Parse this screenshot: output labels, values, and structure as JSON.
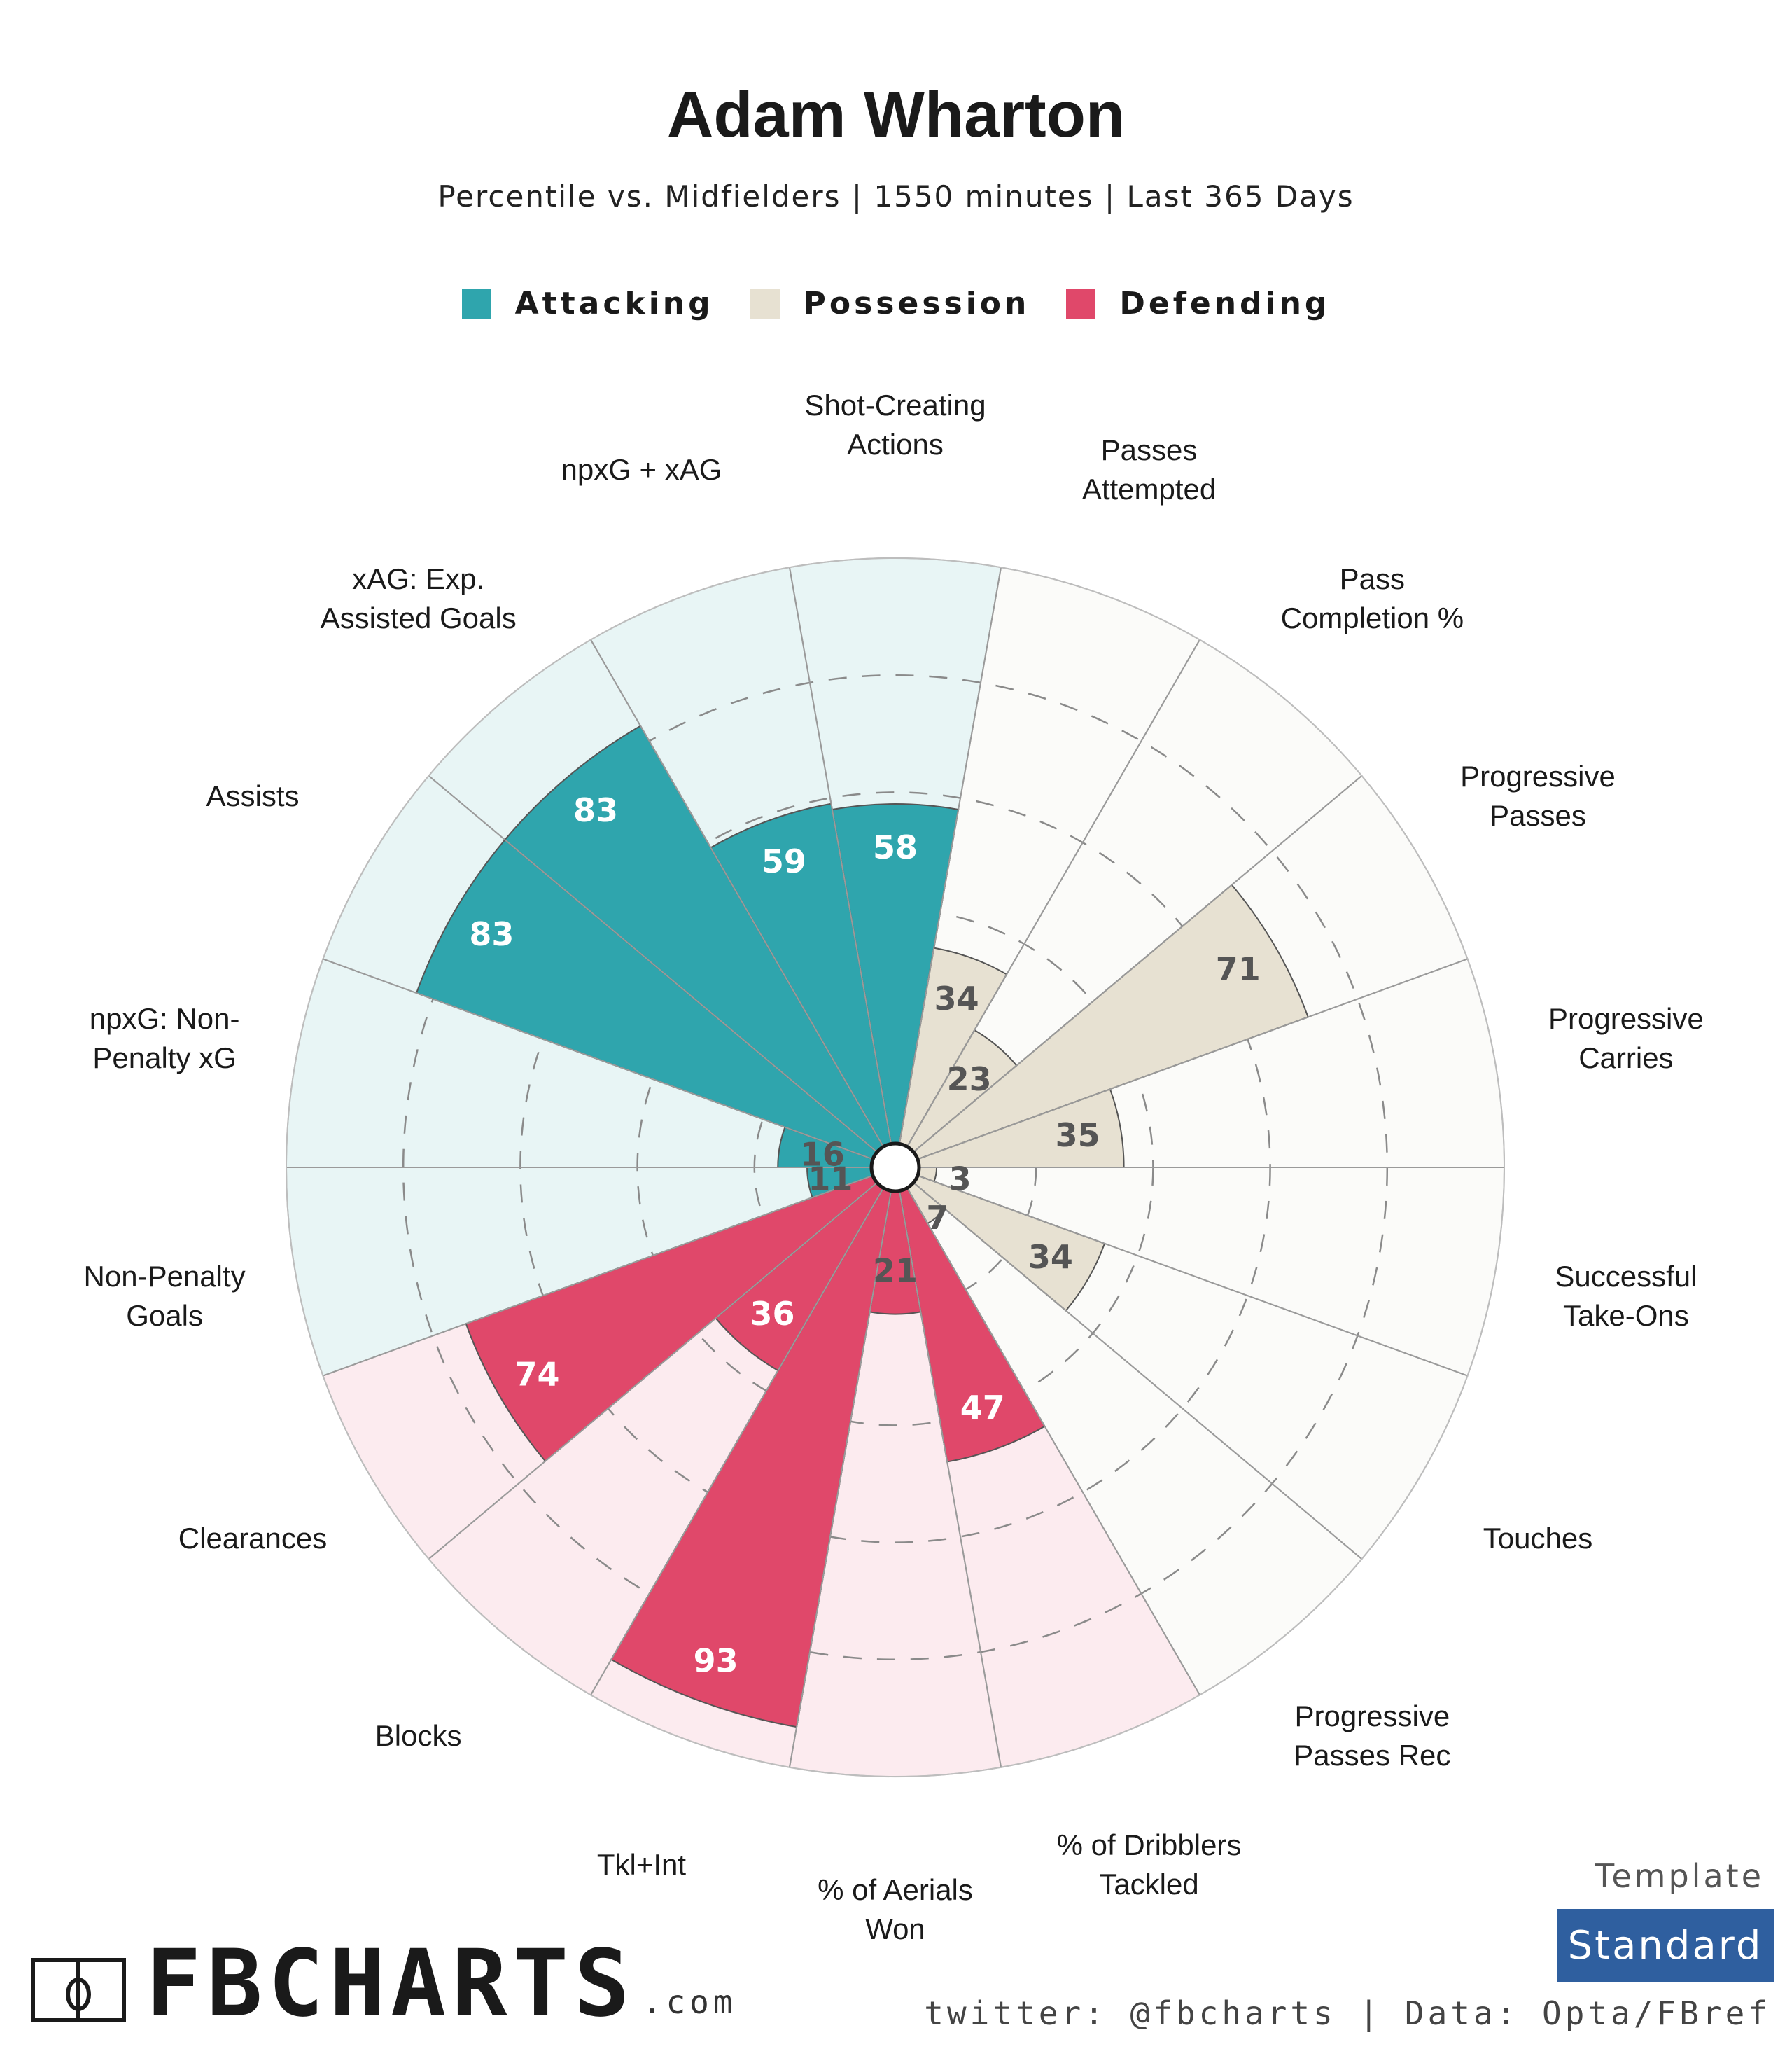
{
  "header": {
    "title": "Adam Wharton",
    "subtitle": "Percentile vs. Midfielders | 1550 minutes | Last 365 Days"
  },
  "colors": {
    "attacking": "#2fa5ad",
    "possession": "#e7e1d2",
    "defending": "#e0486a",
    "attacking_bg": "#e8f5f5",
    "possession_bg": "#fbfbf9",
    "defending_bg": "#fcebef"
  },
  "chart_data": {
    "type": "polar-bar",
    "title": "Adam Wharton",
    "subtitle": "Percentile vs. Midfielders | 1550 minutes | Last 365 Days",
    "rlim": [
      0,
      100
    ],
    "gridlines": [
      20,
      40,
      60,
      80
    ],
    "legend": [
      {
        "key": "attacking",
        "label": "Attacking"
      },
      {
        "key": "possession",
        "label": "Possession"
      },
      {
        "key": "defending",
        "label": "Defending"
      }
    ],
    "legend_placement": "top",
    "categories": [
      {
        "label": "Shot-Creating\nActions",
        "value": 58,
        "group": "attacking"
      },
      {
        "label": "Passes\nAttempted",
        "value": 34,
        "group": "possession"
      },
      {
        "label": "Pass\nCompletion %",
        "value": 23,
        "group": "possession"
      },
      {
        "label": "Progressive\nPasses",
        "value": 71,
        "group": "possession"
      },
      {
        "label": "Progressive\nCarries",
        "value": 35,
        "group": "possession"
      },
      {
        "label": "Successful\nTake-Ons",
        "value": 3,
        "group": "possession"
      },
      {
        "label": "Touches",
        "value": 34,
        "group": "possession"
      },
      {
        "label": "Progressive\nPasses Rec",
        "value": 7,
        "group": "possession"
      },
      {
        "label": "% of Dribblers\nTackled",
        "value": 47,
        "group": "defending"
      },
      {
        "label": "% of Aerials\nWon",
        "value": 21,
        "group": "defending"
      },
      {
        "label": "Tkl+Int",
        "value": 93,
        "group": "defending"
      },
      {
        "label": "Blocks",
        "value": 36,
        "group": "defending"
      },
      {
        "label": "Clearances",
        "value": 74,
        "group": "defending"
      },
      {
        "label": "Non-Penalty\nGoals",
        "value": 11,
        "group": "attacking"
      },
      {
        "label": "npxG: Non-\nPenalty xG",
        "value": 16,
        "group": "attacking"
      },
      {
        "label": "Assists",
        "value": 83,
        "group": "attacking"
      },
      {
        "label": "xAG: Exp.\nAssisted Goals",
        "value": 83,
        "group": "attacking"
      },
      {
        "label": "npxG + xAG",
        "value": 59,
        "group": "attacking"
      }
    ]
  },
  "footer": {
    "brand_name": "FBCHARTS",
    "brand_tld": ".com",
    "template_label": "Template",
    "template_value": "Standard",
    "credit": "twitter: @fbcharts | Data: Opta/FBref"
  }
}
